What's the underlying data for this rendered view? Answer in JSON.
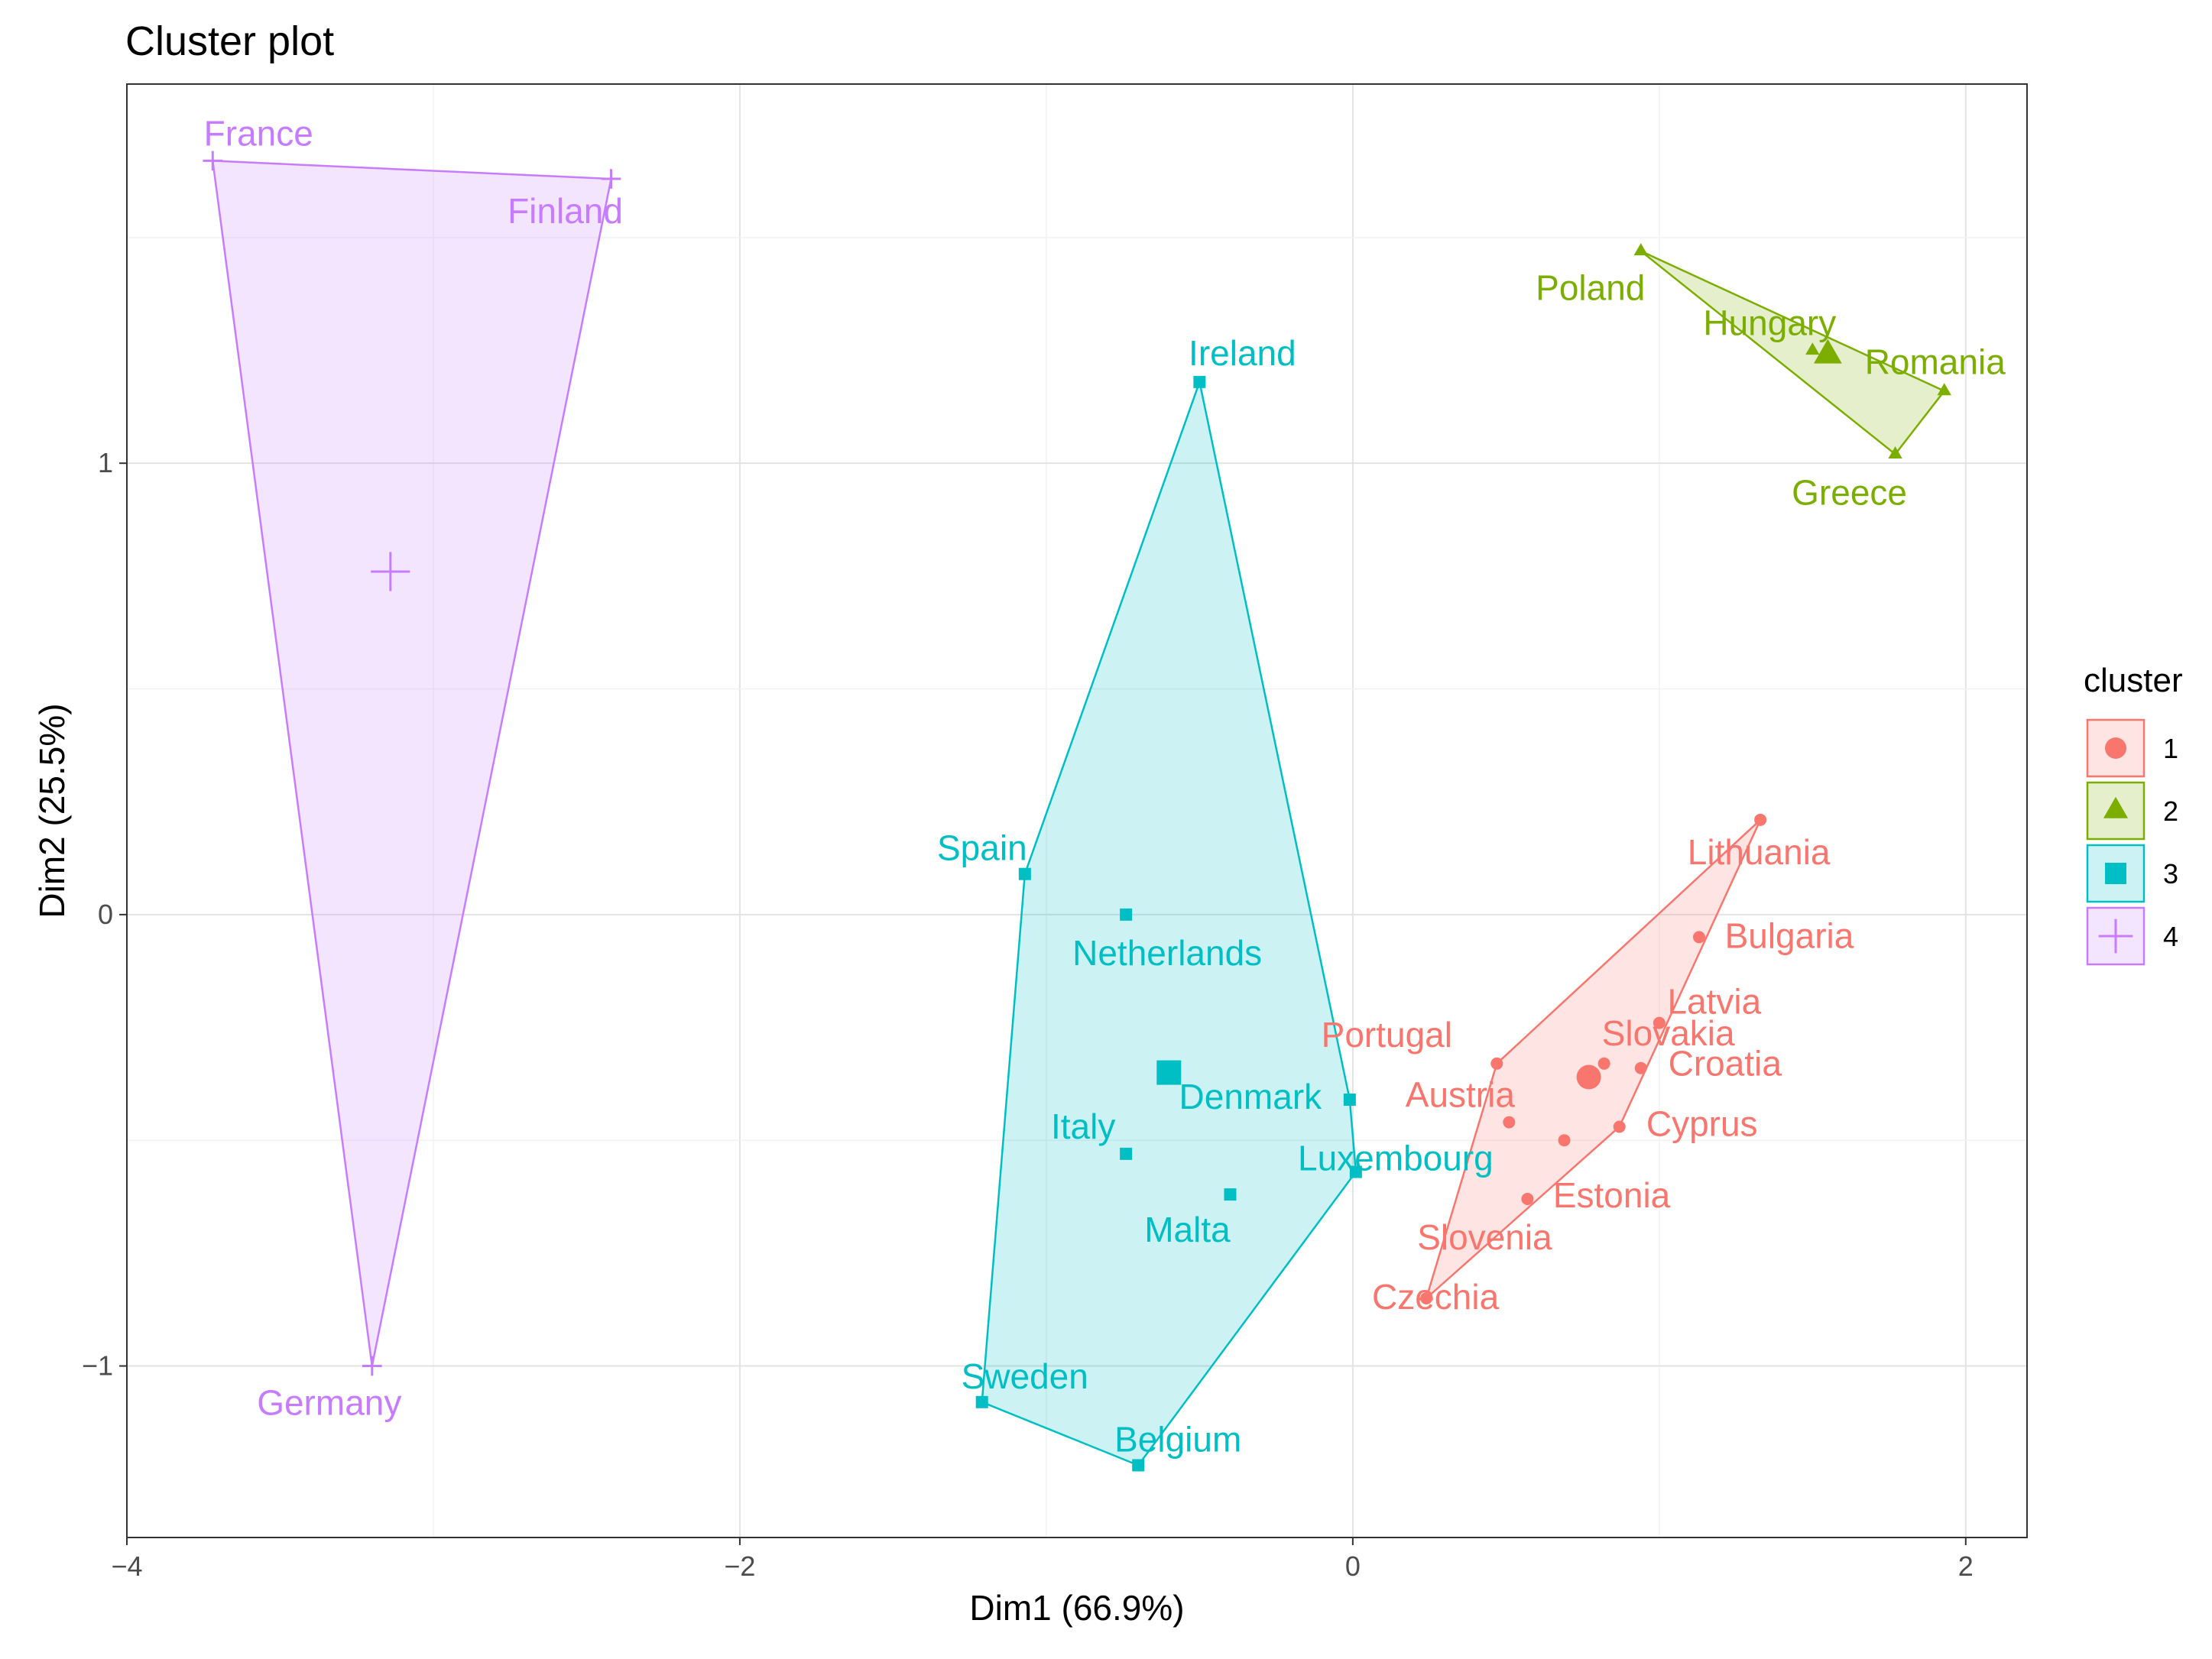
{
  "chart_data": {
    "type": "scatter",
    "title": "Cluster plot",
    "xlabel": "Dim1 (66.9%)",
    "ylabel": "Dim2 (25.5%)",
    "xlim": [
      -4,
      2.2
    ],
    "ylim": [
      -1.38,
      1.84
    ],
    "xticks": [
      -4,
      -2,
      0,
      2
    ],
    "yticks": [
      -1,
      0,
      1
    ],
    "grid": true,
    "legend": {
      "title": "cluster",
      "position": "right"
    },
    "clusters": [
      {
        "name": "1",
        "color": "#F8766D",
        "shape": "circle",
        "center": [
          0.77,
          -0.36
        ],
        "points": [
          {
            "label": "Lithuania",
            "x": 1.33,
            "y": 0.21
          },
          {
            "label": "Bulgaria",
            "x": 1.13,
            "y": -0.05
          },
          {
            "label": "Latvia",
            "x": 1.0,
            "y": -0.24
          },
          {
            "label": "Portugal",
            "x": 0.47,
            "y": -0.33
          },
          {
            "label": "Slovakia",
            "x": 0.82,
            "y": -0.33
          },
          {
            "label": "Croatia",
            "x": 0.94,
            "y": -0.34
          },
          {
            "label": "Austria",
            "x": 0.51,
            "y": -0.46
          },
          {
            "label": "Cyprus",
            "x": 0.87,
            "y": -0.47
          },
          {
            "label": "Estonia",
            "x": 0.69,
            "y": -0.5
          },
          {
            "label": "Slovenia",
            "x": 0.57,
            "y": -0.63
          },
          {
            "label": "Czechia",
            "x": 0.24,
            "y": -0.85
          }
        ]
      },
      {
        "name": "2",
        "color": "#7CAE00",
        "shape": "triangle",
        "center": [
          1.55,
          1.24
        ],
        "points": [
          {
            "label": "Poland",
            "x": 0.94,
            "y": 1.47
          },
          {
            "label": "Hungary",
            "x": 1.5,
            "y": 1.25
          },
          {
            "label": "Romania",
            "x": 1.93,
            "y": 1.16
          },
          {
            "label": "Greece",
            "x": 1.77,
            "y": 1.02
          }
        ]
      },
      {
        "name": "3",
        "color": "#00BFC4",
        "shape": "square",
        "center": [
          -0.6,
          -0.35
        ],
        "points": [
          {
            "label": "Ireland",
            "x": -0.5,
            "y": 1.18
          },
          {
            "label": "Spain",
            "x": -1.07,
            "y": 0.09
          },
          {
            "label": "Netherlands",
            "x": -0.74,
            "y": 0.0
          },
          {
            "label": "Denmark",
            "x": -0.01,
            "y": -0.41
          },
          {
            "label": "Italy",
            "x": -0.74,
            "y": -0.53
          },
          {
            "label": "Luxembourg",
            "x": 0.01,
            "y": -0.57
          },
          {
            "label": "Malta",
            "x": -0.4,
            "y": -0.62
          },
          {
            "label": "Sweden",
            "x": -1.21,
            "y": -1.08
          },
          {
            "label": "Belgium",
            "x": -0.7,
            "y": -1.22
          }
        ]
      },
      {
        "name": "4",
        "color": "#C77CFF",
        "shape": "plus",
        "center": [
          -3.14,
          0.76
        ],
        "points": [
          {
            "label": "France",
            "x": -3.72,
            "y": 1.67
          },
          {
            "label": "Finland",
            "x": -2.42,
            "y": 1.63
          },
          {
            "label": "Germany",
            "x": -3.2,
            "y": -1.0
          }
        ]
      }
    ]
  }
}
